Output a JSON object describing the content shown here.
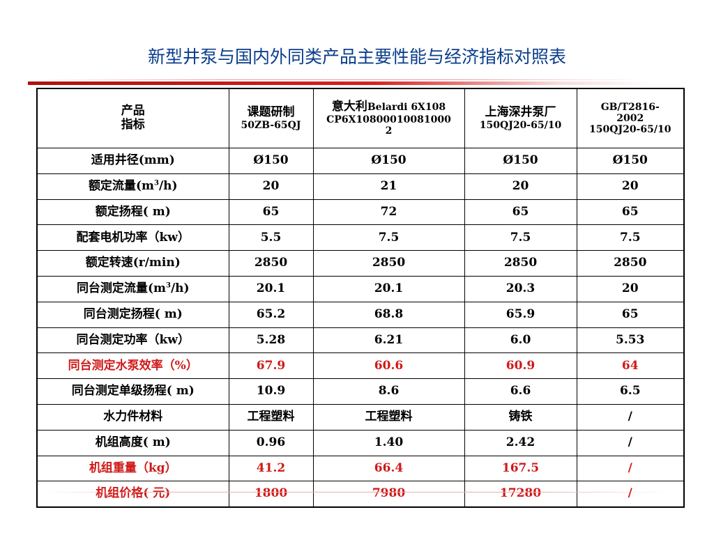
{
  "title": "新型井泵与国内外同类产品主要性能与经济指标对照表",
  "header": {
    "col0_line1": "产品",
    "col0_line2": "指标",
    "col1_line1": "课题研制",
    "col1_line2": "50ZB-65QJ",
    "col2_cn": "意大利",
    "col2_line1_en": "Belardi 6X108",
    "col2_line2": "CP6X10800010081000",
    "col2_line3": "2",
    "col3_line1": "上海深井泵厂",
    "col3_line2": "150QJ20-65/10",
    "col4_line1": "GB/T2816-",
    "col4_line2": "2002",
    "col4_line3": "150QJ20-65/10"
  },
  "rows": [
    {
      "label_cn": "适用井径",
      "label_unit": "(mm)",
      "values": [
        "Ø150",
        "Ø150",
        "Ø150",
        "Ø150"
      ]
    },
    {
      "label_cn": "额定流量",
      "label_unit": "(m",
      "label_sup": "3",
      "label_tail": "/h)",
      "values": [
        "20",
        "21",
        "20",
        "20"
      ]
    },
    {
      "label_cn": "额定扬程",
      "label_unit": "( m)",
      "values": [
        "65",
        "72",
        "65",
        "65"
      ]
    },
    {
      "label_cn": "配套电机功率（",
      "label_unit": "kw",
      "label_tail_cn": "）",
      "values": [
        "5.5",
        "7.5",
        "7.5",
        "7.5"
      ]
    },
    {
      "label_cn": "额定转速",
      "label_unit": "(r/min)",
      "values": [
        "2850",
        "2850",
        "2850",
        "2850"
      ]
    },
    {
      "label_cn": "同台测定流量",
      "label_unit": "(m",
      "label_sup": "3",
      "label_tail": "/h)",
      "values": [
        "20.1",
        "20.1",
        "20.3",
        "20"
      ]
    },
    {
      "label_cn": "同台测定扬程",
      "label_unit": "( m)",
      "values": [
        "65.2",
        "68.8",
        "65.9",
        "65"
      ]
    },
    {
      "label_cn": "同台测定功率（",
      "label_unit": "kw",
      "label_tail_cn": "）",
      "values": [
        "5.28",
        "6.21",
        "6.0",
        "5.53"
      ]
    },
    {
      "label_cn": "同台测定水泵效率（",
      "label_unit": "%",
      "label_tail_cn": "）",
      "values": [
        "67.9",
        "60.6",
        "60.9",
        "64"
      ],
      "highlight": true
    },
    {
      "label_cn": "同台测定单级扬程",
      "label_unit": "( m)",
      "values": [
        "10.9",
        "8.6",
        "6.6",
        "6.5"
      ]
    },
    {
      "label_cn": "水力件材料",
      "values": [
        "工程塑料",
        "工程塑料",
        "铸铁",
        "/"
      ]
    },
    {
      "label_cn": "机组高度",
      "label_unit": "( m)",
      "values": [
        "0.96",
        "1.40",
        "2.42",
        "/"
      ]
    },
    {
      "label_cn": "机组重量（",
      "label_unit": "kg",
      "label_tail_cn": "）",
      "values": [
        "41.2",
        "66.4",
        "167.5",
        "/"
      ],
      "highlight": true
    },
    {
      "label_cn": "机组价格",
      "label_unit": "( ",
      "label_tail_cn": "元",
      "label_tail": ")",
      "values": [
        "1800",
        "7980",
        "17280",
        "/"
      ],
      "highlight": true
    }
  ],
  "colors": {
    "title": "#0a3d8c",
    "highlight": "#d01818",
    "rule": "#d82020"
  }
}
